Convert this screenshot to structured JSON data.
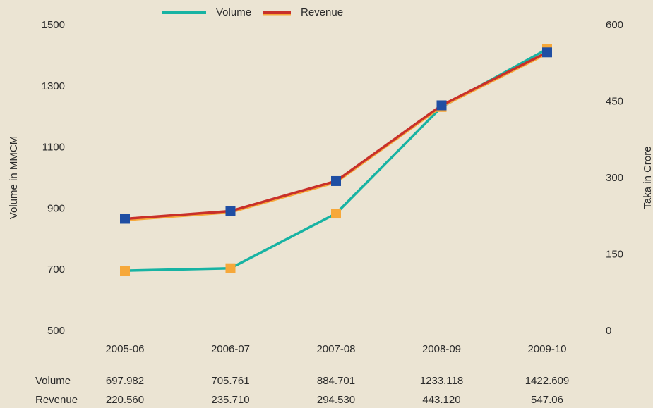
{
  "chart_data": {
    "type": "line",
    "categories": [
      "2005-06",
      "2006-07",
      "2007-08",
      "2008-09",
      "2009-10"
    ],
    "series": [
      {
        "name": "Volume",
        "color": "#17b3a3",
        "marker_color": "#f6a83a",
        "values": [
          697.982,
          705.761,
          884.701,
          1233.118,
          1422.609
        ],
        "value_labels": [
          "697.982",
          "705.761",
          "884.701",
          "1233.118",
          "1422.609"
        ]
      },
      {
        "name": "Revenue",
        "color": "#c8302a",
        "marker_color": "#1f4ea3",
        "axis": "y2",
        "values": [
          220.56,
          235.71,
          294.53,
          443.12,
          547.06
        ],
        "value_labels": [
          "220.560",
          "235.710",
          "294.530",
          "443.120",
          "547.06"
        ]
      }
    ],
    "ylabel": "Volume in MMCM",
    "y2label": "Taka in Crore",
    "ylim": [
      500,
      1500
    ],
    "yticks": [
      500,
      700,
      900,
      1100,
      1300,
      1500
    ],
    "y2lim": [
      0,
      600
    ],
    "y2ticks": [
      0,
      150,
      300,
      450,
      600
    ]
  }
}
